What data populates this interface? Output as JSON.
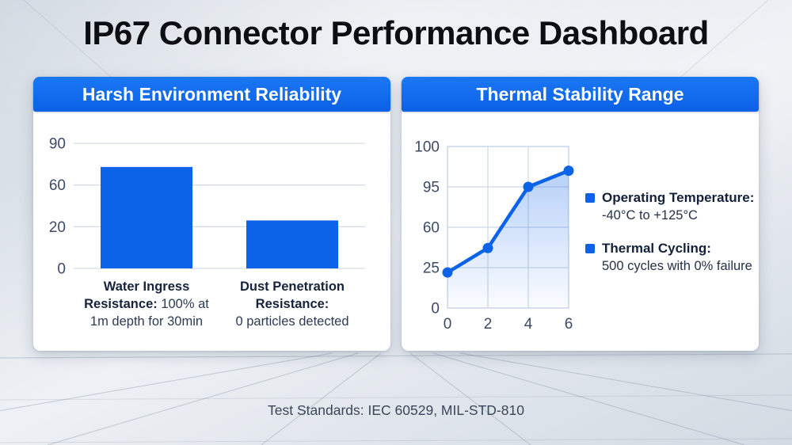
{
  "page": {
    "title": "IP67 Connector Performance Dashboard",
    "footer": "Test Standards: IEC 60529, MIL-STD-810"
  },
  "theme": {
    "accent": "#0d63e8",
    "header_gradient_top": "#1a78f4",
    "header_gradient_bottom": "#0c60e6",
    "bar_fill": "#0d63e8",
    "grid_color": "#d6dde8",
    "plot_grid_color": "#ccd8e8",
    "plot_border_color": "#c4d2e6",
    "axis_label_color": "#3c4a66",
    "text_dark": "#16233c",
    "text_body": "#2c3a54"
  },
  "left_panel": {
    "header": "Harsh Environment Reliability"
  },
  "right_panel": {
    "header": "Thermal Stability Range",
    "legend": [
      {
        "label": "Operating Temperature:",
        "value": "-40°C to +125°C"
      },
      {
        "label": "Thermal Cycling:",
        "value": "500 cycles with 0% failure"
      }
    ]
  },
  "chart_data": [
    {
      "type": "bar",
      "title": "Harsh Environment Reliability",
      "categories": [
        "Water Ingress Resistance: 100% at 1m depth for 30min",
        "Dust Penetration Resistance: 0 particles detected"
      ],
      "category_lines": [
        [
          [
            {
              "text": "Water Ingress",
              "bold": true
            }
          ],
          [
            {
              "text": "Resistance:",
              "bold": true
            },
            {
              "text": " 100% at",
              "bold": false
            }
          ],
          [
            {
              "text": "1m depth for 30min",
              "bold": false
            }
          ]
        ],
        [
          [
            {
              "text": "Dust Penetration",
              "bold": true
            }
          ],
          [
            {
              "text": "Resistance:",
              "bold": true
            }
          ],
          [
            {
              "text": "0 particles detected",
              "bold": false
            }
          ]
        ]
      ],
      "values": [
        73,
        26
      ],
      "yticks": [
        0,
        20,
        60,
        90
      ],
      "ylim": [
        0,
        90
      ],
      "grid": true,
      "legend": "none"
    },
    {
      "type": "line",
      "title": "Thermal Stability Range",
      "x": [
        0,
        2,
        4,
        6
      ],
      "values": [
        22,
        42,
        95,
        97
      ],
      "xticks": [
        0,
        2,
        4,
        6
      ],
      "yticks": [
        0,
        25,
        60,
        95,
        100
      ],
      "xlim": [
        0,
        6
      ],
      "ylim": [
        0,
        100
      ],
      "grid": true,
      "area_fill": true,
      "markers": true,
      "legend_position": "right"
    }
  ]
}
